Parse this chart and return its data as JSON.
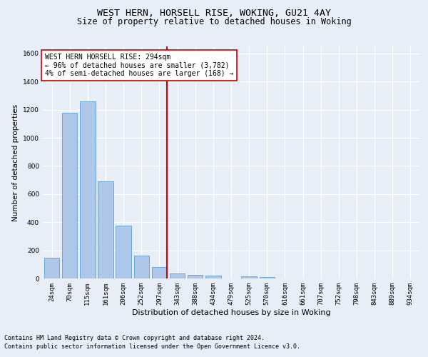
{
  "title": "WEST HERN, HORSELL RISE, WOKING, GU21 4AY",
  "subtitle": "Size of property relative to detached houses in Woking",
  "xlabel": "Distribution of detached houses by size in Woking",
  "ylabel": "Number of detached properties",
  "categories": [
    "24sqm",
    "70sqm",
    "115sqm",
    "161sqm",
    "206sqm",
    "252sqm",
    "297sqm",
    "343sqm",
    "388sqm",
    "434sqm",
    "479sqm",
    "525sqm",
    "570sqm",
    "616sqm",
    "661sqm",
    "707sqm",
    "752sqm",
    "798sqm",
    "843sqm",
    "889sqm",
    "934sqm"
  ],
  "values": [
    145,
    1180,
    1260,
    690,
    375,
    165,
    80,
    35,
    25,
    20,
    0,
    15,
    10,
    0,
    0,
    0,
    0,
    0,
    0,
    0,
    0
  ],
  "bar_color": "#aec6e8",
  "bar_edge_color": "#5a9fd4",
  "vline_x_index": 6,
  "vline_color": "#cc0000",
  "annotation_text": "WEST HERN HORSELL RISE: 294sqm\n← 96% of detached houses are smaller (3,782)\n4% of semi-detached houses are larger (168) →",
  "annotation_box_color": "#ffffff",
  "annotation_box_edge_color": "#cc0000",
  "ylim": [
    0,
    1650
  ],
  "yticks": [
    0,
    200,
    400,
    600,
    800,
    1000,
    1200,
    1400,
    1600
  ],
  "background_color": "#e8eef7",
  "grid_color": "#ffffff",
  "footer_line1": "Contains HM Land Registry data © Crown copyright and database right 2024.",
  "footer_line2": "Contains public sector information licensed under the Open Government Licence v3.0.",
  "title_fontsize": 9.5,
  "subtitle_fontsize": 8.5,
  "xlabel_fontsize": 8,
  "ylabel_fontsize": 7.5,
  "tick_fontsize": 6.5,
  "annotation_fontsize": 7,
  "footer_fontsize": 6
}
